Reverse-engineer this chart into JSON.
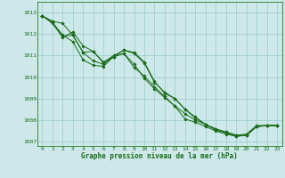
{
  "title": "Graphe pression niveau de la mer (hPa)",
  "bg_color": "#cce8e8",
  "grid_color": "#99cccc",
  "line_color": "#1a6b1a",
  "text_color": "#1a6b1a",
  "xlim": [
    -0.5,
    23.5
  ],
  "ylim": [
    1006.8,
    1013.5
  ],
  "yticks": [
    1007,
    1008,
    1009,
    1010,
    1011,
    1012,
    1013
  ],
  "xticks": [
    0,
    1,
    2,
    3,
    4,
    5,
    6,
    7,
    8,
    9,
    10,
    11,
    12,
    13,
    14,
    15,
    16,
    17,
    18,
    19,
    20,
    21,
    22,
    23
  ],
  "series": [
    [
      1012.85,
      1012.6,
      1012.5,
      1011.95,
      1011.15,
      1010.75,
      1010.6,
      1010.95,
      1011.1,
      1010.45,
      1010.05,
      1009.55,
      1009.1,
      1008.65,
      1008.3,
      1008.0,
      1007.8,
      1007.6,
      1007.45,
      1007.3,
      1007.35,
      1007.75,
      1007.75,
      1007.75
    ],
    [
      1012.85,
      1012.55,
      1011.95,
      1011.65,
      1010.8,
      1010.55,
      1010.5,
      1010.95,
      1011.1,
      1010.6,
      1009.95,
      1009.45,
      1009.05,
      1008.65,
      1008.05,
      1007.9,
      1007.7,
      1007.5,
      1007.35,
      1007.25,
      1007.3,
      1007.7,
      1007.75,
      1007.75
    ],
    [
      1012.85,
      1012.55,
      1011.9,
      1011.95,
      1011.15,
      1011.2,
      1010.65,
      1010.95,
      1011.25,
      1011.1,
      1010.65,
      1009.75,
      1009.3,
      1009.0,
      1008.5,
      1008.15,
      1007.8,
      1007.55,
      1007.45,
      1007.3,
      1007.3,
      1007.7,
      1007.75,
      1007.75
    ],
    [
      1012.85,
      1012.5,
      1011.85,
      1012.1,
      1011.45,
      1011.2,
      1010.7,
      1011.0,
      1011.25,
      1011.15,
      1010.7,
      1009.8,
      1009.25,
      1009.0,
      1008.5,
      1008.1,
      1007.8,
      1007.55,
      1007.4,
      1007.25,
      1007.3,
      1007.7,
      1007.75,
      1007.75
    ]
  ]
}
